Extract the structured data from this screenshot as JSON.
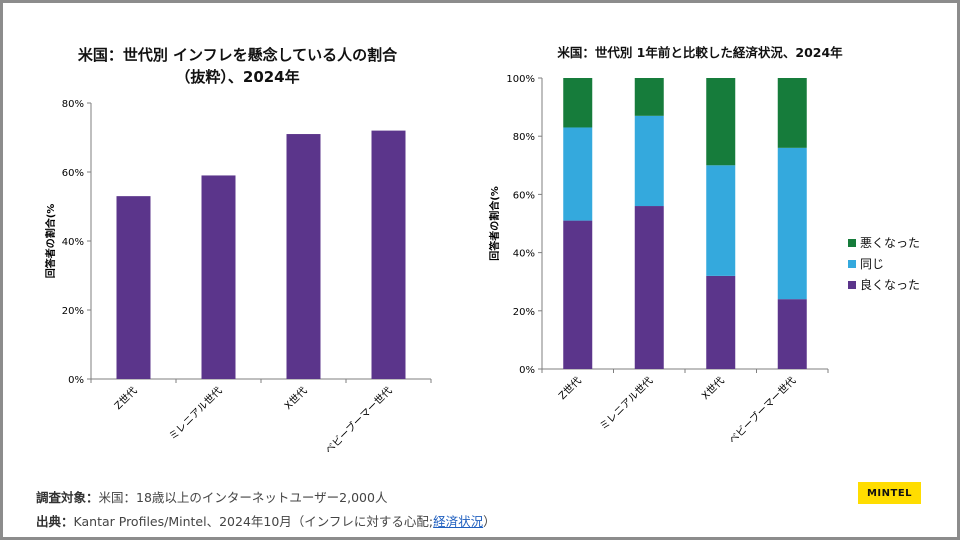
{
  "colors": {
    "purple": "#5b358b",
    "blue": "#34a9dd",
    "green": "#167c3b",
    "axis": "#7f7f7f",
    "brand_bg": "#ffdd00"
  },
  "chart_data": [
    {
      "type": "bar",
      "title_lines": [
        "米国：世代別 インフレを懸念している人の割合",
        "（抜粋）、2024年"
      ],
      "categories": [
        "Z世代",
        "ミレニアル世代",
        "X世代",
        "ベビーブーマー世代"
      ],
      "values": [
        53,
        59,
        71,
        72
      ],
      "ylim": [
        0,
        80
      ],
      "yticks": [
        0,
        20,
        40,
        60,
        80
      ],
      "ytick_labels": [
        "0%",
        "20%",
        "40%",
        "60%",
        "80%"
      ],
      "ylabel": "回答者の割合(%",
      "xlabel": "",
      "color": "#5b358b"
    },
    {
      "type": "bar",
      "stacked": true,
      "title": "米国：世代別 1年前と比較した経済状況、2024年",
      "categories": [
        "Z世代",
        "ミレニアル世代",
        "X世代",
        "ベビーブーマー世代"
      ],
      "series": [
        {
          "name": "良くなった",
          "values": [
            51,
            56,
            32,
            24
          ],
          "color": "#5b358b"
        },
        {
          "name": "同じ",
          "values": [
            32,
            31,
            38,
            52
          ],
          "color": "#34a9dd"
        },
        {
          "name": "悪くなった",
          "values": [
            17,
            13,
            30,
            24
          ],
          "color": "#167c3b"
        }
      ],
      "ylim": [
        0,
        100
      ],
      "yticks": [
        0,
        20,
        40,
        60,
        80,
        100
      ],
      "ytick_labels": [
        "0%",
        "20%",
        "40%",
        "60%",
        "80%",
        "100%"
      ],
      "ylabel": "回答者の割合(%",
      "legend_order": [
        2,
        1,
        0
      ],
      "legend_position": "right"
    }
  ],
  "footer": {
    "survey_label": "調査対象：",
    "survey_text": "米国：18歳以上のインターネットユーザー2,000人",
    "source_label": "出典：",
    "source_text": "Kantar Profiles/Mintel、2024年10月（インフレに対する心配;",
    "source_link": "経済状況",
    "source_close": "）"
  },
  "brand": {
    "name": "MINTEL"
  }
}
